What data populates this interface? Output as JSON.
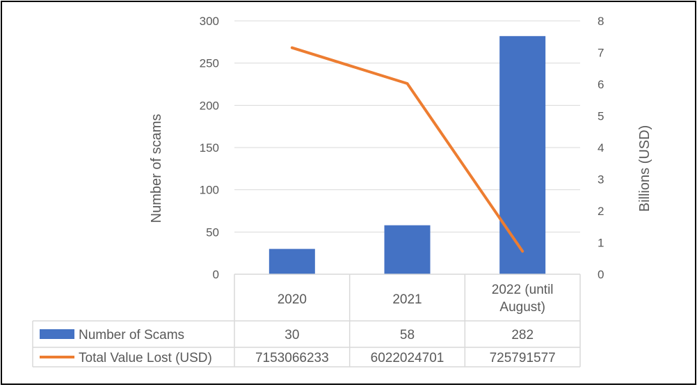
{
  "chart_data": {
    "type": "bar",
    "categories": [
      "2020",
      "2021",
      "2022 (until August)"
    ],
    "category_lines": [
      [
        "2020"
      ],
      [
        "2021"
      ],
      [
        "2022 (until",
        "August)"
      ]
    ],
    "series": [
      {
        "name": "Number of Scams",
        "type": "bar",
        "axis": "left",
        "color": "#4472C4",
        "values": [
          30,
          58,
          282
        ]
      },
      {
        "name": "Total Value Lost (USD)",
        "type": "line",
        "axis": "right",
        "color": "#ED7D31",
        "values": [
          7.153066233,
          6.022024701,
          0.725791577
        ],
        "table_values": [
          "7153066233",
          "6022024701",
          "725791577"
        ]
      }
    ],
    "y_left": {
      "label": "Number of scams",
      "ylim": [
        0,
        300
      ],
      "ticks": [
        "0",
        "50",
        "100",
        "150",
        "200",
        "250",
        "300"
      ]
    },
    "y_right": {
      "label": "Billions (USD)",
      "ylim": [
        0,
        8
      ],
      "ticks": [
        "0",
        "1",
        "2",
        "3",
        "4",
        "5",
        "6",
        "7",
        "8"
      ]
    },
    "grid": true,
    "legend": "data-table"
  }
}
